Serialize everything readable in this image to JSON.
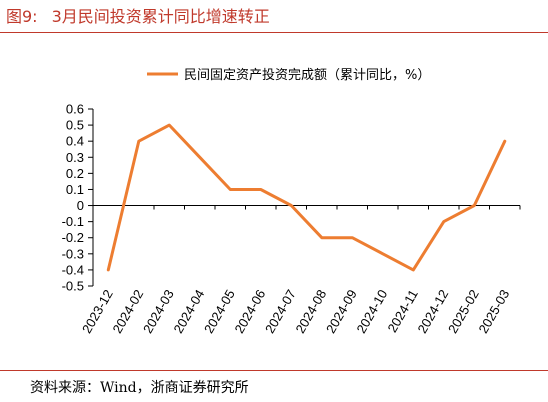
{
  "figure": {
    "number": "图9:",
    "title": "3月民间投资累计同比增速转正"
  },
  "source": "资料来源：Wind，浙商证券研究所",
  "chart_data": {
    "type": "line",
    "categories": [
      "2023-12",
      "2024-02",
      "2024-03",
      "2024-04",
      "2024-05",
      "2024-06",
      "2024-07",
      "2024-08",
      "2024-09",
      "2024-10",
      "2024-11",
      "2024-12",
      "2025-02",
      "2025-03"
    ],
    "series": [
      {
        "name": "民间固定资产投资完成额（累计同比，%）",
        "values": [
          -0.4,
          0.4,
          0.5,
          0.3,
          0.1,
          0.1,
          0.0,
          -0.2,
          -0.2,
          -0.3,
          -0.4,
          -0.1,
          0.0,
          0.4
        ],
        "color": "#ed7d31"
      }
    ],
    "ylim": [
      -0.5,
      0.6
    ],
    "yticks": [
      0.6,
      0.5,
      0.4,
      0.3,
      0.2,
      0.1,
      0,
      -0.1,
      -0.2,
      -0.3,
      -0.4,
      -0.5
    ],
    "legend_position": "top-center",
    "grid": false
  }
}
